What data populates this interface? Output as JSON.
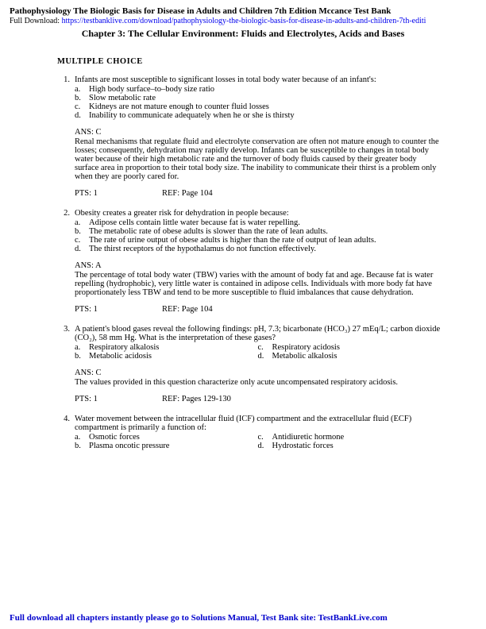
{
  "header": {
    "title": "Pathophysiology The Biologic Basis for Disease in Adults and Children 7th Edition Mccance Test Bank",
    "download_label": "Full Download: ",
    "download_url": "https://testbanklive.com/download/pathophysiology-the-biologic-basis-for-disease-in-adults-and-children-7th-editi"
  },
  "chapter_title": "Chapter 3: The Cellular Environment: Fluids and Electrolytes, Acids and Bases",
  "section_header": "MULTIPLE  CHOICE",
  "questions": [
    {
      "num": "1.",
      "stem": "Infants are most susceptible to significant losses in total body water because of an infant's:",
      "options": [
        {
          "l": "a.",
          "t": "High body surface–to–body size ratio"
        },
        {
          "l": "b.",
          "t": "Slow metabolic rate"
        },
        {
          "l": "c.",
          "t": "Kidneys are not mature enough to counter fluid losses"
        },
        {
          "l": "d.",
          "t": "Inability to communicate adequately when he or she is thirsty"
        }
      ],
      "two_col": false,
      "ans": "ANS:   C",
      "explanation": "Renal mechanisms that regulate fluid and electrolyte conservation are often not mature enough to counter the losses; consequently, dehydration may rapidly develop. Infants can be susceptible to changes in total body water because of their high metabolic rate and the turnover of body fluids caused by their greater body surface area in proportion to their total body size. The inability to communicate their thirst is a problem only when they are poorly cared for.",
      "pts": "PTS:   1",
      "ref": "REF:   Page 104"
    },
    {
      "num": "2.",
      "stem": "Obesity creates a greater risk for dehydration in people because:",
      "options": [
        {
          "l": "a.",
          "t": "Adipose cells contain little water because fat is water repelling."
        },
        {
          "l": "b.",
          "t": "The metabolic rate of obese adults is slower than the rate of lean adults."
        },
        {
          "l": "c.",
          "t": "The rate of urine output of obese adults is higher than the rate of output of lean adults."
        },
        {
          "l": "d.",
          "t": "The thirst receptors of the hypothalamus do not function effectively."
        }
      ],
      "two_col": false,
      "ans": "ANS:   A",
      "explanation": "The percentage of total body water (TBW) varies with the amount of body fat and age. Because fat is water repelling (hydrophobic), very little water is contained in adipose cells. Individuals with more body fat have proportionately less TBW and tend to be more susceptible to fluid imbalances that cause dehydration.",
      "pts": "PTS:   1",
      "ref": "REF:   Page 104"
    },
    {
      "num": "3.",
      "stem": "A patient's blood gases reveal the following findings: pH, 7.3; bicarbonate (HCO₃) 27 mEq/L; carbon dioxide (CO₂), 58 mm Hg. What is the interpretation of these gases?",
      "options": [
        {
          "l": "a.",
          "t": "Respiratory alkalosis"
        },
        {
          "l": "b.",
          "t": "Metabolic acidosis"
        },
        {
          "l": "c.",
          "t": "Respiratory acidosis"
        },
        {
          "l": "d.",
          "t": "Metabolic alkalosis"
        }
      ],
      "two_col": true,
      "ans": "ANS:   C",
      "explanation": "The values provided in this question characterize only acute uncompensated respiratory acidosis.",
      "pts": "PTS:   1",
      "ref": "REF:   Pages 129-130"
    },
    {
      "num": "4.",
      "stem": "Water movement between the intracellular fluid (ICF) compartment and the extracellular fluid (ECF) compartment is primarily a function of:",
      "options": [
        {
          "l": "a.",
          "t": "Osmotic forces"
        },
        {
          "l": "b.",
          "t": "Plasma oncotic pressure"
        },
        {
          "l": "c.",
          "t": "Antidiuretic hormone"
        },
        {
          "l": "d.",
          "t": "Hydrostatic forces"
        }
      ],
      "two_col": true,
      "ans": "",
      "explanation": "",
      "pts": "",
      "ref": ""
    }
  ],
  "footer": "Full download all chapters instantly please go to Solutions Manual, Test Bank site: TestBankLive.com"
}
